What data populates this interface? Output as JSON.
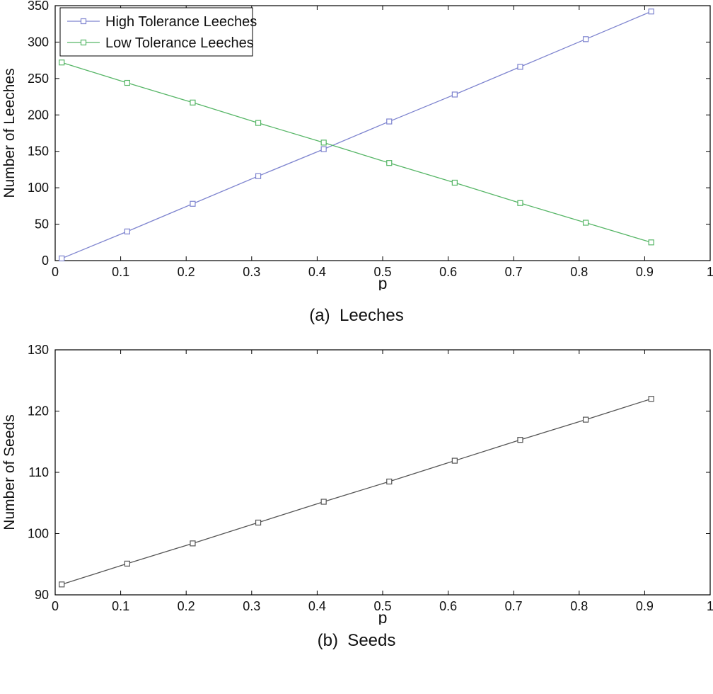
{
  "captions": {
    "a": "(a)  Leeches",
    "b": "(b)  Seeds"
  },
  "chart_data": [
    {
      "type": "line",
      "title": "",
      "xlabel": "p",
      "ylabel": "Number of Leeches",
      "xlim": [
        0,
        1
      ],
      "ylim": [
        0,
        350
      ],
      "xticks": [
        0,
        0.1,
        0.2,
        0.3,
        0.4,
        0.5,
        0.6,
        0.7,
        0.8,
        0.9,
        1
      ],
      "xtick_labels": [
        "0",
        "0.1",
        "0.2",
        "0.3",
        "0.4",
        "0.5",
        "0.6",
        "0.7",
        "0.8",
        "0.9",
        "1"
      ],
      "yticks": [
        0,
        50,
        100,
        150,
        200,
        250,
        300,
        350
      ],
      "ytick_labels": [
        "0",
        "50",
        "100",
        "150",
        "200",
        "250",
        "300",
        "350"
      ],
      "grid": false,
      "legend": true,
      "legend_position": "top-left",
      "x": [
        0.01,
        0.11,
        0.21,
        0.31,
        0.41,
        0.51,
        0.61,
        0.71,
        0.81,
        0.91
      ],
      "series": [
        {
          "name": "High Tolerance Leeches",
          "color": "#7e84cf",
          "marker": "square",
          "values": [
            3,
            40,
            78,
            116,
            153,
            191,
            228,
            266,
            304,
            342
          ]
        },
        {
          "name": "Low Tolerance Leeches",
          "color": "#57b667",
          "marker": "square",
          "values": [
            272,
            244,
            217,
            189,
            162,
            134,
            107,
            79,
            52,
            25
          ]
        }
      ]
    },
    {
      "type": "line",
      "title": "",
      "xlabel": "p",
      "ylabel": "Number of Seeds",
      "xlim": [
        0,
        1
      ],
      "ylim": [
        90,
        130
      ],
      "xticks": [
        0,
        0.1,
        0.2,
        0.3,
        0.4,
        0.5,
        0.6,
        0.7,
        0.8,
        0.9,
        1
      ],
      "xtick_labels": [
        "0",
        "0.1",
        "0.2",
        "0.3",
        "0.4",
        "0.5",
        "0.6",
        "0.7",
        "0.8",
        "0.9",
        "1"
      ],
      "yticks": [
        90,
        100,
        110,
        120,
        130
      ],
      "ytick_labels": [
        "90",
        "100",
        "110",
        "120",
        "130"
      ],
      "grid": false,
      "legend": false,
      "legend_position": "none",
      "x": [
        0.01,
        0.11,
        0.21,
        0.31,
        0.41,
        0.51,
        0.61,
        0.71,
        0.81,
        0.91
      ],
      "series": [
        {
          "name": "Seeds",
          "color": "#555555",
          "marker": "square",
          "values": [
            91.7,
            95.1,
            98.4,
            101.8,
            105.2,
            108.5,
            111.9,
            115.3,
            118.6,
            122.0
          ]
        }
      ]
    }
  ]
}
